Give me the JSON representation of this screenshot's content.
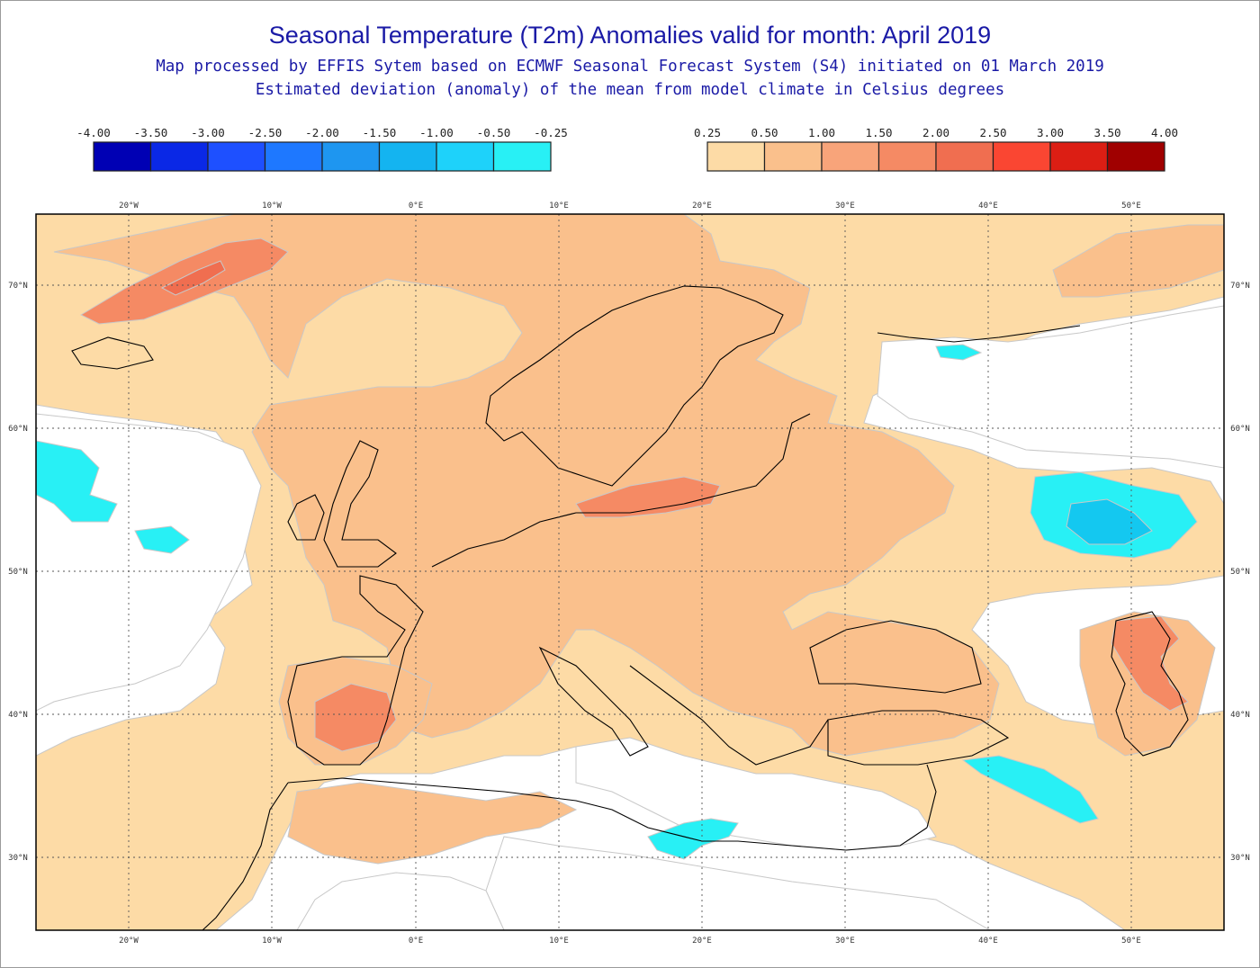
{
  "header": {
    "title": "Seasonal Temperature (T2m) Anomalies valid for month: April 2019",
    "subtitle_1": "Map processed by EFFIS Sytem based on ECMWF Seasonal Forecast System (S4) initiated on 01 March 2019",
    "subtitle_2": "Estimated deviation (anomaly) of the mean from model climate in Celsius degrees"
  },
  "legend_negative": {
    "labels": [
      "-4.00",
      "-3.50",
      "-3.00",
      "-2.50",
      "-2.00",
      "-1.50",
      "-1.00",
      "-0.50",
      "-0.25"
    ],
    "colors": [
      "#0000b4",
      "#0a28e6",
      "#1e50ff",
      "#1e78ff",
      "#1e96f0",
      "#14b4f0",
      "#1ed2fa",
      "#28f0f5"
    ]
  },
  "legend_positive": {
    "labels": [
      "0.25",
      "0.50",
      "1.00",
      "1.50",
      "2.00",
      "2.50",
      "3.00",
      "3.50",
      "4.00"
    ],
    "colors": [
      "#fddba6",
      "#fac08c",
      "#f8a47a",
      "#f58a64",
      "#f06e50",
      "#fa4632",
      "#dc1e14",
      "#a00000"
    ]
  },
  "map": {
    "longitude_labels": [
      "20°W",
      "10°W",
      "0°E",
      "10°E",
      "20°E",
      "30°E",
      "40°E",
      "50°E"
    ],
    "latitude_labels": [
      "70°N",
      "60°N",
      "50°N",
      "40°N",
      "30°N"
    ],
    "colors": {
      "ocean_nodata": "#ffffff",
      "light": "#fddba6",
      "medium": "#fac08c",
      "strong": "#f58a64",
      "stronger": "#f06e50",
      "cold_light": "#28f0f5",
      "cold_medium": "#14c8f0",
      "coast": "#000000",
      "grid": "#555555"
    }
  }
}
